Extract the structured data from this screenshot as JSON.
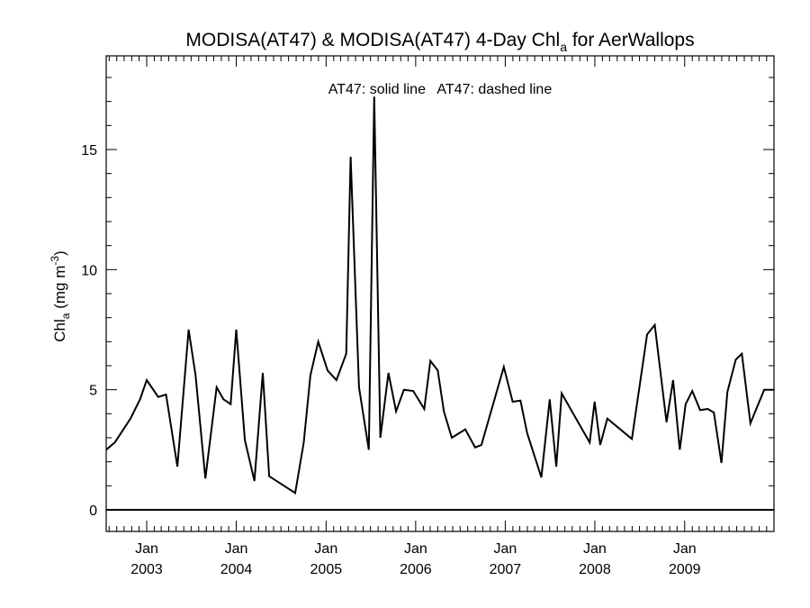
{
  "chart_data": {
    "type": "line",
    "title": {
      "main": "MODISA(AT47) & MODISA(AT47) 4-Day Chl",
      "subscript": "a",
      "suffix": " for AerWallops"
    },
    "annotation": "AT47: solid line   AT47: dashed line",
    "ylabel": {
      "base": "Chl",
      "subscript": "a",
      "units_open": " (mg m",
      "superscript": "-3",
      "units_close": ")"
    },
    "ylim": [
      -0.9,
      18.9
    ],
    "yticks": [
      0,
      5,
      10,
      15
    ],
    "xlim": [
      "2002-07-20",
      "2009-12-31"
    ],
    "xticks": [
      {
        "date": "2003-01-01",
        "month": "Jan",
        "year": "2003"
      },
      {
        "date": "2004-01-01",
        "month": "Jan",
        "year": "2004"
      },
      {
        "date": "2005-01-01",
        "month": "Jan",
        "year": "2005"
      },
      {
        "date": "2006-01-01",
        "month": "Jan",
        "year": "2006"
      },
      {
        "date": "2007-01-01",
        "month": "Jan",
        "year": "2007"
      },
      {
        "date": "2008-01-01",
        "month": "Jan",
        "year": "2008"
      },
      {
        "date": "2009-01-01",
        "month": "Jan",
        "year": "2009"
      }
    ],
    "reference_line": 0,
    "series": [
      {
        "style": "solid",
        "color": "#000000",
        "x": [
          "2002-07-20",
          "2002-08-24",
          "2002-10-27",
          "2002-12-05",
          "2003-01-01",
          "2003-02-17",
          "2003-03-21",
          "2003-05-06",
          "2003-06-21",
          "2003-07-19",
          "2003-08-28",
          "2003-10-13",
          "2003-11-10",
          "2003-12-09",
          "2004-01-01",
          "2004-02-05",
          "2004-03-15",
          "2004-04-18",
          "2004-05-14",
          "2004-08-28",
          "2004-10-02",
          "2004-10-29",
          "2004-11-30",
          "2005-01-07",
          "2005-02-12",
          "2005-03-24",
          "2005-04-11",
          "2005-05-15",
          "2005-06-24",
          "2005-07-16",
          "2005-08-10",
          "2005-09-12",
          "2005-10-13",
          "2005-11-14",
          "2005-12-22",
          "2006-02-05",
          "2006-03-02",
          "2006-04-01",
          "2006-04-26",
          "2006-05-28",
          "2006-07-22",
          "2006-08-31",
          "2006-09-26",
          "2006-12-26",
          "2007-01-31",
          "2007-03-04",
          "2007-03-31",
          "2007-05-28",
          "2007-07-01",
          "2007-07-28",
          "2007-08-19",
          "2007-12-11",
          "2007-12-31",
          "2008-01-23",
          "2008-02-21",
          "2008-05-31",
          "2008-08-01",
          "2008-09-01",
          "2008-10-19",
          "2008-11-15",
          "2008-12-12",
          "2009-01-05",
          "2009-02-01",
          "2009-03-05",
          "2009-04-05",
          "2009-04-30",
          "2009-05-31",
          "2009-06-24",
          "2009-07-28",
          "2009-08-22",
          "2009-09-26",
          "2009-11-21",
          "2009-12-31"
        ],
        "y": [
          2.5,
          2.8,
          3.8,
          4.6,
          5.4,
          4.7,
          4.8,
          1.8,
          7.5,
          5.6,
          1.3,
          5.1,
          4.6,
          4.4,
          7.5,
          2.9,
          1.2,
          5.7,
          1.4,
          0.7,
          2.8,
          5.6,
          7.0,
          5.8,
          5.4,
          6.5,
          14.7,
          5.1,
          2.5,
          17.2,
          3.0,
          5.7,
          4.1,
          5.0,
          4.95,
          4.2,
          6.2,
          5.8,
          4.1,
          3.0,
          3.35,
          2.6,
          2.7,
          5.95,
          4.5,
          4.55,
          3.2,
          1.35,
          4.6,
          1.8,
          4.85,
          2.8,
          4.5,
          2.7,
          3.8,
          2.95,
          7.3,
          7.7,
          3.65,
          5.4,
          2.5,
          4.4,
          4.95,
          4.15,
          4.2,
          4.05,
          1.95,
          4.9,
          6.25,
          6.5,
          3.6,
          5.0,
          5.0
        ]
      }
    ]
  }
}
